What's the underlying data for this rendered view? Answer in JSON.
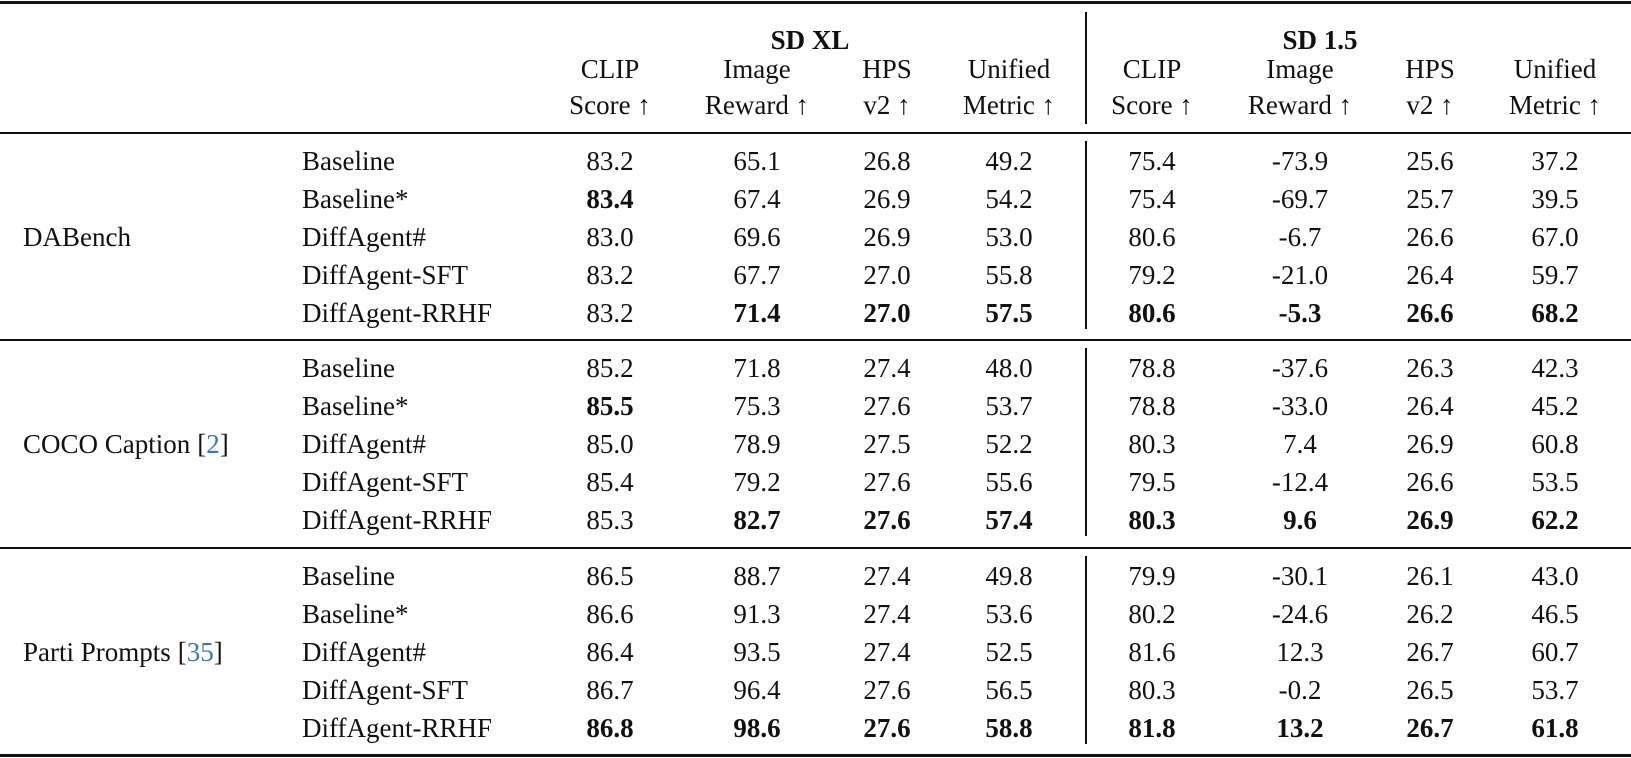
{
  "table": {
    "column_groups": [
      "SD XL",
      "SD 1.5"
    ],
    "columns": [
      [
        "CLIP",
        "Score ↑"
      ],
      [
        "Image",
        "Reward ↑"
      ],
      [
        "HPS",
        "v2 ↑"
      ],
      [
        "Unified",
        "Metric ↑"
      ]
    ],
    "datasets": [
      {
        "name": "DABench",
        "rows": [
          {
            "method": "Baseline",
            "cells": [
              "83.2",
              "65.1",
              "26.8",
              "49.2",
              "75.4",
              "-73.9",
              "25.6",
              "37.2"
            ],
            "bold": []
          },
          {
            "method": "Baseline*",
            "cells": [
              "83.4",
              "67.4",
              "26.9",
              "54.2",
              "75.4",
              "-69.7",
              "25.7",
              "39.5"
            ],
            "bold": [
              0
            ]
          },
          {
            "method": "DiffAgent#",
            "cells": [
              "83.0",
              "69.6",
              "26.9",
              "53.0",
              "80.6",
              "-6.7",
              "26.6",
              "67.0"
            ],
            "bold": []
          },
          {
            "method": "DiffAgent-SFT",
            "cells": [
              "83.2",
              "67.7",
              "27.0",
              "55.8",
              "79.2",
              "-21.0",
              "26.4",
              "59.7"
            ],
            "bold": []
          },
          {
            "method": "DiffAgent-RRHF",
            "cells": [
              "83.2",
              "71.4",
              "27.0",
              "57.5",
              "80.6",
              "-5.3",
              "26.6",
              "68.2"
            ],
            "bold": [
              1,
              2,
              3,
              4,
              5,
              6,
              7
            ]
          }
        ]
      },
      {
        "name": "COCO Caption",
        "citation": "[2]",
        "rows": [
          {
            "method": "Baseline",
            "cells": [
              "85.2",
              "71.8",
              "27.4",
              "48.0",
              "78.8",
              "-37.6",
              "26.3",
              "42.3"
            ],
            "bold": []
          },
          {
            "method": "Baseline*",
            "cells": [
              "85.5",
              "75.3",
              "27.6",
              "53.7",
              "78.8",
              "-33.0",
              "26.4",
              "45.2"
            ],
            "bold": [
              0
            ]
          },
          {
            "method": "DiffAgent#",
            "cells": [
              "85.0",
              "78.9",
              "27.5",
              "52.2",
              "80.3",
              "7.4",
              "26.9",
              "60.8"
            ],
            "bold": []
          },
          {
            "method": "DiffAgent-SFT",
            "cells": [
              "85.4",
              "79.2",
              "27.6",
              "55.6",
              "79.5",
              "-12.4",
              "26.6",
              "53.5"
            ],
            "bold": []
          },
          {
            "method": "DiffAgent-RRHF",
            "cells": [
              "85.3",
              "82.7",
              "27.6",
              "57.4",
              "80.3",
              "9.6",
              "26.9",
              "62.2"
            ],
            "bold": [
              1,
              2,
              3,
              4,
              5,
              6,
              7
            ]
          }
        ]
      },
      {
        "name": "Parti Prompts",
        "citation": "[35]",
        "rows": [
          {
            "method": "Baseline",
            "cells": [
              "86.5",
              "88.7",
              "27.4",
              "49.8",
              "79.9",
              "-30.1",
              "26.1",
              "43.0"
            ],
            "bold": []
          },
          {
            "method": "Baseline*",
            "cells": [
              "86.6",
              "91.3",
              "27.4",
              "53.6",
              "80.2",
              "-24.6",
              "26.2",
              "46.5"
            ],
            "bold": []
          },
          {
            "method": "DiffAgent#",
            "cells": [
              "86.4",
              "93.5",
              "27.4",
              "52.5",
              "81.6",
              "12.3",
              "26.7",
              "60.7"
            ],
            "bold": []
          },
          {
            "method": "DiffAgent-SFT",
            "cells": [
              "86.7",
              "96.4",
              "27.6",
              "56.5",
              "80.3",
              "-0.2",
              "26.5",
              "53.7"
            ],
            "bold": []
          },
          {
            "method": "DiffAgent-RRHF",
            "cells": [
              "86.8",
              "98.6",
              "27.6",
              "58.8",
              "81.8",
              "13.2",
              "26.7",
              "61.8"
            ],
            "bold": [
              0,
              1,
              2,
              3,
              4,
              5,
              6,
              7
            ]
          }
        ]
      }
    ]
  }
}
